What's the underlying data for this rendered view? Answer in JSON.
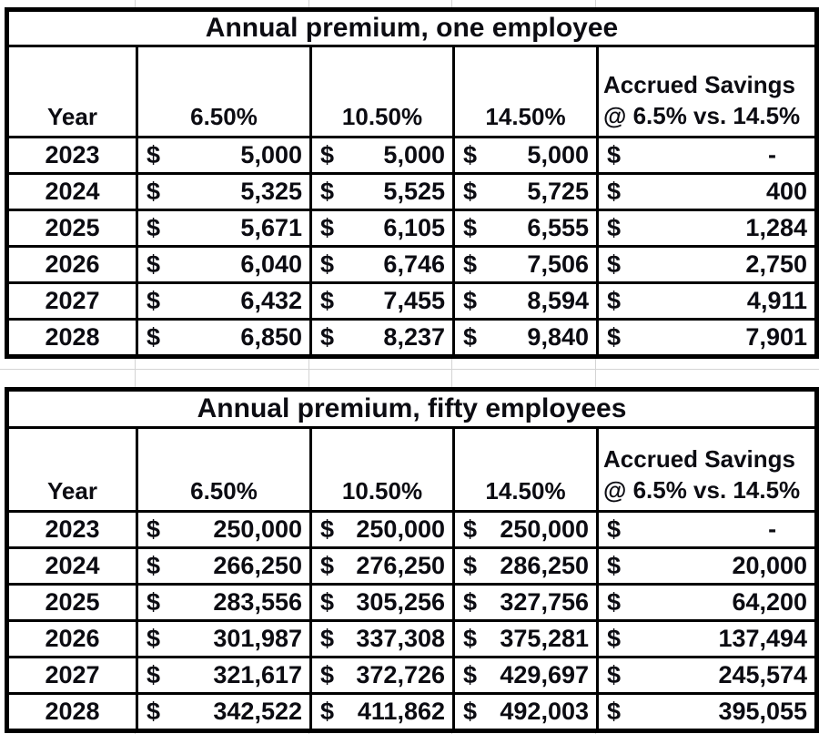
{
  "styles": {
    "background": "#ffffff",
    "border_color": "#000000",
    "gridline_color": "#d4d4d4",
    "text_color": "#0c0c12"
  },
  "tables": [
    {
      "title": "Annual premium, one employee",
      "col_year": "Year",
      "col_rates": [
        "6.50%",
        "10.50%",
        "14.50%"
      ],
      "savings_header": [
        "Accrued Savings",
        "@ 6.5% vs. 14.5%"
      ],
      "currency_symbol": "$",
      "rows": [
        {
          "year": "2023",
          "values": [
            "5,000",
            "5,000",
            "5,000"
          ],
          "savings": "-"
        },
        {
          "year": "2024",
          "values": [
            "5,325",
            "5,525",
            "5,725"
          ],
          "savings": "400"
        },
        {
          "year": "2025",
          "values": [
            "5,671",
            "6,105",
            "6,555"
          ],
          "savings": "1,284"
        },
        {
          "year": "2026",
          "values": [
            "6,040",
            "6,746",
            "7,506"
          ],
          "savings": "2,750"
        },
        {
          "year": "2027",
          "values": [
            "6,432",
            "7,455",
            "8,594"
          ],
          "savings": "4,911"
        },
        {
          "year": "2028",
          "values": [
            "6,850",
            "8,237",
            "9,840"
          ],
          "savings": "7,901"
        }
      ]
    },
    {
      "title": "Annual premium, fifty employees",
      "col_year": "Year",
      "col_rates": [
        "6.50%",
        "10.50%",
        "14.50%"
      ],
      "savings_header": [
        "Accrued Savings",
        "@ 6.5% vs. 14.5%"
      ],
      "currency_symbol": "$",
      "rows": [
        {
          "year": "2023",
          "values": [
            "250,000",
            "250,000",
            "250,000"
          ],
          "savings": "-"
        },
        {
          "year": "2024",
          "values": [
            "266,250",
            "276,250",
            "286,250"
          ],
          "savings": "20,000"
        },
        {
          "year": "2025",
          "values": [
            "283,556",
            "305,256",
            "327,756"
          ],
          "savings": "64,200"
        },
        {
          "year": "2026",
          "values": [
            "301,987",
            "337,308",
            "375,281"
          ],
          "savings": "137,494"
        },
        {
          "year": "2027",
          "values": [
            "321,617",
            "372,726",
            "429,697"
          ],
          "savings": "245,574"
        },
        {
          "year": "2028",
          "values": [
            "342,522",
            "411,862",
            "492,003"
          ],
          "savings": "395,055"
        }
      ]
    }
  ],
  "chart_data": [
    {
      "type": "table",
      "title": "Annual premium, one employee",
      "columns": [
        "Year",
        "6.50%",
        "10.50%",
        "14.50%",
        "Accrued Savings @ 6.5% vs. 14.5%"
      ],
      "rows": [
        [
          "2023",
          5000,
          5000,
          5000,
          0
        ],
        [
          "2024",
          5325,
          5525,
          5725,
          400
        ],
        [
          "2025",
          5671,
          6105,
          6555,
          1284
        ],
        [
          "2026",
          6040,
          6746,
          7506,
          2750
        ],
        [
          "2027",
          6432,
          7455,
          8594,
          4911
        ],
        [
          "2028",
          6850,
          8237,
          9840,
          7901
        ]
      ]
    },
    {
      "type": "table",
      "title": "Annual premium, fifty employees",
      "columns": [
        "Year",
        "6.50%",
        "10.50%",
        "14.50%",
        "Accrued Savings @ 6.5% vs. 14.5%"
      ],
      "rows": [
        [
          "2023",
          250000,
          250000,
          250000,
          0
        ],
        [
          "2024",
          266250,
          276250,
          286250,
          20000
        ],
        [
          "2025",
          283556,
          305256,
          327756,
          64200
        ],
        [
          "2026",
          301987,
          337308,
          375281,
          137494
        ],
        [
          "2027",
          321617,
          372726,
          429697,
          245574
        ],
        [
          "2028",
          342522,
          411862,
          492003,
          395055
        ]
      ]
    }
  ]
}
